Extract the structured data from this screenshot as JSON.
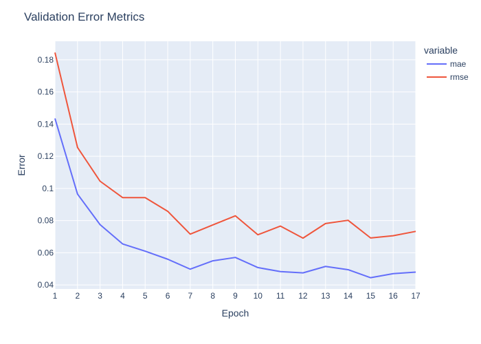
{
  "chart_data": {
    "type": "line",
    "title": "Validation Error Metrics",
    "xlabel": "Epoch",
    "ylabel": "Error",
    "x": [
      1,
      2,
      3,
      4,
      5,
      6,
      7,
      8,
      9,
      10,
      11,
      12,
      13,
      14,
      15,
      16,
      17
    ],
    "xlim": [
      1,
      17
    ],
    "ylim": [
      0.0375,
      0.1915
    ],
    "yticks": [
      0.04,
      0.06,
      0.08,
      0.1,
      0.12,
      0.14,
      0.16,
      0.18
    ],
    "ytick_labels": [
      "0.04",
      "0.06",
      "0.08",
      "0.1",
      "0.12",
      "0.14",
      "0.16",
      "0.18"
    ],
    "grid": true,
    "plot_bg": "#e5ecf6",
    "legend": {
      "title": "variable",
      "placement": "right"
    },
    "series": [
      {
        "name": "mae",
        "color": "#636efa",
        "values": [
          0.1435,
          0.0965,
          0.0775,
          0.0655,
          0.061,
          0.056,
          0.0498,
          0.055,
          0.0571,
          0.0508,
          0.0483,
          0.0475,
          0.0515,
          0.0495,
          0.0445,
          0.047,
          0.048
        ]
      },
      {
        "name": "rmse",
        "color": "#ef553b",
        "values": [
          0.1845,
          0.1255,
          0.1045,
          0.0943,
          0.0943,
          0.0858,
          0.0716,
          0.0773,
          0.083,
          0.0712,
          0.0766,
          0.0691,
          0.0782,
          0.0802,
          0.0692,
          0.0706,
          0.0733
        ]
      }
    ]
  }
}
